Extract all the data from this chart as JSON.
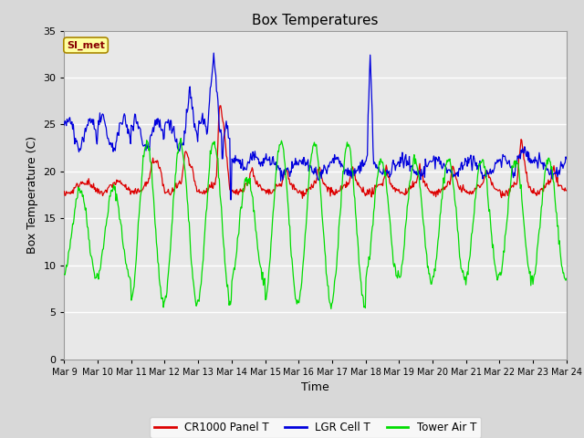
{
  "title": "Box Temperatures",
  "xlabel": "Time",
  "ylabel": "Box Temperature (C)",
  "ylim": [
    0,
    35
  ],
  "yticks": [
    0,
    5,
    10,
    15,
    20,
    25,
    30,
    35
  ],
  "x_labels": [
    "Mar 9",
    "Mar 10",
    "Mar 11",
    "Mar 12",
    "Mar 13",
    "Mar 14",
    "Mar 15",
    "Mar 16",
    "Mar 17",
    "Mar 18",
    "Mar 19",
    "Mar 20",
    "Mar 21",
    "Mar 22",
    "Mar 23",
    "Mar 24"
  ],
  "fig_bg": "#d8d8d8",
  "plot_bg": "#e8e8e8",
  "grid_color": "#ffffff",
  "annotation_text": "SI_met",
  "annotation_bg": "#ffffa0",
  "annotation_border": "#aa8800",
  "annotation_text_color": "#880000",
  "cr1000_color": "#dd0000",
  "lgr_color": "#0000dd",
  "tower_color": "#00dd00",
  "legend_labels": [
    "CR1000 Panel T",
    "LGR Cell T",
    "Tower Air T"
  ]
}
